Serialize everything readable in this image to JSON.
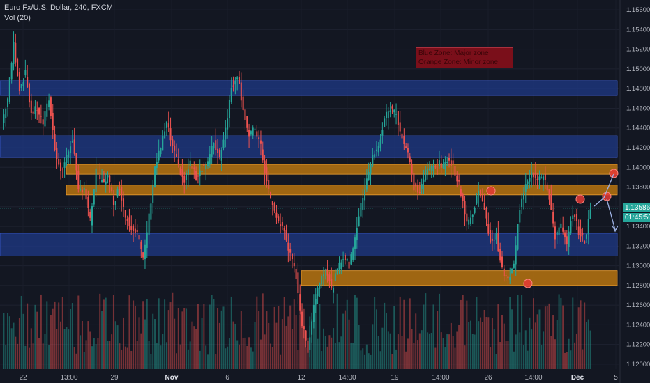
{
  "header": {
    "title": "Euro Fx/U.S. Dollar, 240, FXCM",
    "volume_label": "Vol (20)"
  },
  "annotation": {
    "line1": "Blue Zone: Major zone",
    "line2": "Orange Zone: Minor zone"
  },
  "price_badge": {
    "price": "1.13586",
    "countdown": "01:45:50"
  },
  "colors": {
    "background": "#131722",
    "up": "#26a69a",
    "down": "#ef5350",
    "blue_zone": "#1e3a8a",
    "orange_zone": "#c77c0e",
    "marker": "#e53935"
  },
  "chart_data": {
    "type": "candlestick",
    "symbol": "Euro Fx/U.S. Dollar",
    "timeframe": "240",
    "source": "FXCM",
    "ylim": [
      1.1195,
      1.157
    ],
    "y_ticks": [
      "1.15600",
      "1.15400",
      "1.15200",
      "1.15000",
      "1.14800",
      "1.14600",
      "1.14400",
      "1.14200",
      "1.14000",
      "1.13800",
      "1.13600",
      "1.13400",
      "1.13200",
      "1.13000",
      "1.12800",
      "1.12600",
      "1.12400",
      "1.12200",
      "1.12000"
    ],
    "x_ticks": [
      "22",
      "13:00",
      "29",
      "Nov",
      "6",
      "12",
      "14:00",
      "19",
      "14:00",
      "26",
      "14:00",
      "Dec",
      "5"
    ],
    "last_price": 1.13586,
    "zones": [
      {
        "kind": "major",
        "color": "blue",
        "low": 1.1473,
        "high": 1.1488
      },
      {
        "kind": "major",
        "color": "blue",
        "low": 1.141,
        "high": 1.1432
      },
      {
        "kind": "minor",
        "color": "orange",
        "low": 1.1393,
        "high": 1.1403
      },
      {
        "kind": "minor",
        "color": "orange",
        "low": 1.1372,
        "high": 1.1382
      },
      {
        "kind": "major",
        "color": "blue",
        "low": 1.131,
        "high": 1.1333
      },
      {
        "kind": "minor",
        "color": "orange",
        "low": 1.128,
        "high": 1.1295
      }
    ],
    "close_path": [
      1.1445,
      1.147,
      1.1525,
      1.148,
      1.1495,
      1.1455,
      1.146,
      1.1445,
      1.147,
      1.142,
      1.1395,
      1.141,
      1.143,
      1.1375,
      1.138,
      1.1345,
      1.1395,
      1.1385,
      1.139,
      1.1365,
      1.138,
      1.135,
      1.134,
      1.1335,
      1.1305,
      1.135,
      1.14,
      1.142,
      1.1445,
      1.142,
      1.14,
      1.1385,
      1.1405,
      1.139,
      1.14,
      1.1405,
      1.1425,
      1.141,
      1.144,
      1.148,
      1.1495,
      1.146,
      1.143,
      1.144,
      1.142,
      1.1385,
      1.136,
      1.1345,
      1.1335,
      1.131,
      1.129,
      1.124,
      1.1215,
      1.126,
      1.1285,
      1.13,
      1.1275,
      1.1295,
      1.131,
      1.13,
      1.133,
      1.136,
      1.139,
      1.141,
      1.142,
      1.145,
      1.146,
      1.1455,
      1.143,
      1.1415,
      1.138,
      1.1375,
      1.1395,
      1.14,
      1.1405,
      1.14,
      1.141,
      1.1395,
      1.1375,
      1.1345,
      1.135,
      1.138,
      1.1355,
      1.1325,
      1.133,
      1.1295,
      1.1285,
      1.13,
      1.136,
      1.1385,
      1.1395,
      1.139,
      1.139,
      1.137,
      1.133,
      1.134,
      1.132,
      1.1355,
      1.1335,
      1.1325,
      1.1355
    ]
  }
}
